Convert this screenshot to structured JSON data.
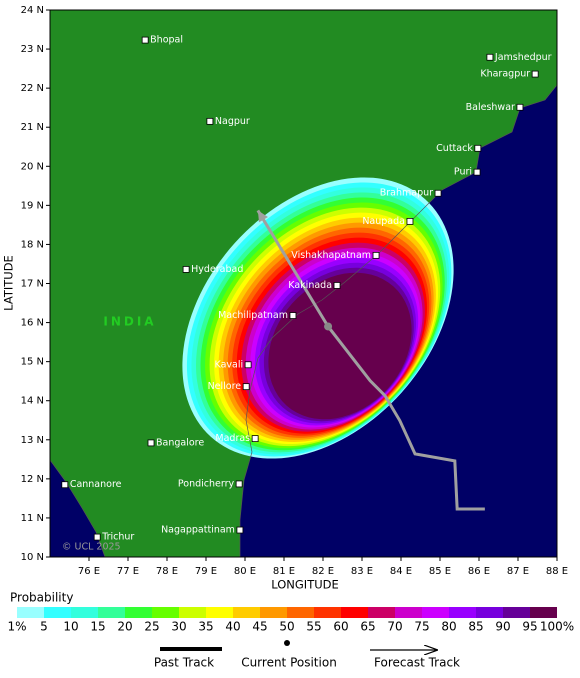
{
  "map": {
    "xlabel": "LONGITUDE",
    "ylabel": "LATITUDE",
    "country": "INDIA",
    "copyright": "© UCL 2025",
    "xlim": [
      75,
      88
    ],
    "ylim": [
      10,
      24
    ],
    "xticks": [
      {
        "value": 76,
        "label": "76 E"
      },
      {
        "value": 77,
        "label": "77 E"
      },
      {
        "value": 78,
        "label": "78 E"
      },
      {
        "value": 79,
        "label": "79 E"
      },
      {
        "value": 80,
        "label": "80 E"
      },
      {
        "value": 81,
        "label": "81 E"
      },
      {
        "value": 82,
        "label": "82 E"
      },
      {
        "value": 83,
        "label": "83 E"
      },
      {
        "value": 84,
        "label": "84 E"
      },
      {
        "value": 85,
        "label": "85 E"
      },
      {
        "value": 86,
        "label": "86 E"
      },
      {
        "value": 87,
        "label": "87 E"
      },
      {
        "value": 88,
        "label": "88 E"
      }
    ],
    "yticks": [
      {
        "value": 10,
        "label": "10 N"
      },
      {
        "value": 11,
        "label": "11 N"
      },
      {
        "value": 12,
        "label": "12 N"
      },
      {
        "value": 13,
        "label": "13 N"
      },
      {
        "value": 14,
        "label": "14 N"
      },
      {
        "value": 15,
        "label": "15 N"
      },
      {
        "value": 16,
        "label": "16 N"
      },
      {
        "value": 17,
        "label": "17 N"
      },
      {
        "value": 18,
        "label": "18 N"
      },
      {
        "value": 19,
        "label": "19 N"
      },
      {
        "value": 20,
        "label": "20 N"
      },
      {
        "value": 21,
        "label": "21 N"
      },
      {
        "value": 22,
        "label": "22 N"
      },
      {
        "value": 23,
        "label": "23 N"
      },
      {
        "value": 24,
        "label": "24 N"
      }
    ],
    "cities": [
      {
        "name": "Bhopal",
        "lon": 77.44,
        "lat": 23.23
      },
      {
        "name": "Jamshedpur",
        "lon": 86.28,
        "lat": 22.79
      },
      {
        "name": "Kharagpur",
        "lon": 87.44,
        "lat": 22.36
      },
      {
        "name": "Baleshwar",
        "lon": 87.05,
        "lat": 21.51
      },
      {
        "name": "Nagpur",
        "lon": 79.1,
        "lat": 21.15
      },
      {
        "name": "Cuttack",
        "lon": 85.97,
        "lat": 20.46
      },
      {
        "name": "Puri",
        "lon": 85.95,
        "lat": 19.85
      },
      {
        "name": "Brahmapur",
        "lon": 84.95,
        "lat": 19.31
      },
      {
        "name": "Naupada",
        "lon": 84.23,
        "lat": 18.59
      },
      {
        "name": "Vishakhapatnam",
        "lon": 83.36,
        "lat": 17.72
      },
      {
        "name": "Hyderabad",
        "lon": 78.49,
        "lat": 17.36
      },
      {
        "name": "Kakinada",
        "lon": 82.36,
        "lat": 16.95
      },
      {
        "name": "Machilipatnam",
        "lon": 81.23,
        "lat": 16.18
      },
      {
        "name": "Kavali",
        "lon": 80.08,
        "lat": 14.92
      },
      {
        "name": "Nellore",
        "lon": 80.03,
        "lat": 14.36
      },
      {
        "name": "Bangalore",
        "lon": 77.59,
        "lat": 12.92
      },
      {
        "name": "Madras",
        "lon": 80.26,
        "lat": 13.03
      },
      {
        "name": "Cannanore",
        "lon": 75.38,
        "lat": 11.85
      },
      {
        "name": "Pondicherry",
        "lon": 79.85,
        "lat": 11.87
      },
      {
        "name": "Trichur",
        "lon": 76.21,
        "lat": 10.51
      },
      {
        "name": "Nagappattinam",
        "lon": 79.87,
        "lat": 10.69
      }
    ],
    "track": {
      "lon": [
        86.15,
        85.44,
        85.38,
        84.36,
        83.97,
        83.59,
        83.21,
        82.13,
        80.33
      ],
      "lat": [
        11.23,
        11.23,
        12.46,
        12.64,
        13.49,
        14.13,
        14.51,
        15.9,
        18.87
      ],
      "current": 7,
      "color": "#a0a0a0"
    },
    "land_color": "#228b22",
    "sea_color": "#000066"
  },
  "legend": {
    "title": "Probability",
    "labels": [
      "1%",
      "5",
      "10",
      "15",
      "20",
      "25",
      "30",
      "35",
      "40",
      "45",
      "50",
      "55",
      "60",
      "65",
      "70",
      "75",
      "80",
      "85",
      "90",
      "95",
      "100%"
    ],
    "colors": [
      "#99ffff",
      "#33ffff",
      "#33ffdd",
      "#33ff99",
      "#33ff33",
      "#66ff00",
      "#ccff00",
      "#ffff00",
      "#ffcc00",
      "#ff9900",
      "#ff6600",
      "#ff3300",
      "#ff0000",
      "#cc0066",
      "#cc00cc",
      "#cc00ff",
      "#9900ff",
      "#7700dd",
      "#660099",
      "#66004d"
    ]
  },
  "key": {
    "past": "Past Track",
    "current": "Current Position",
    "forecast": "Forecast Track"
  }
}
